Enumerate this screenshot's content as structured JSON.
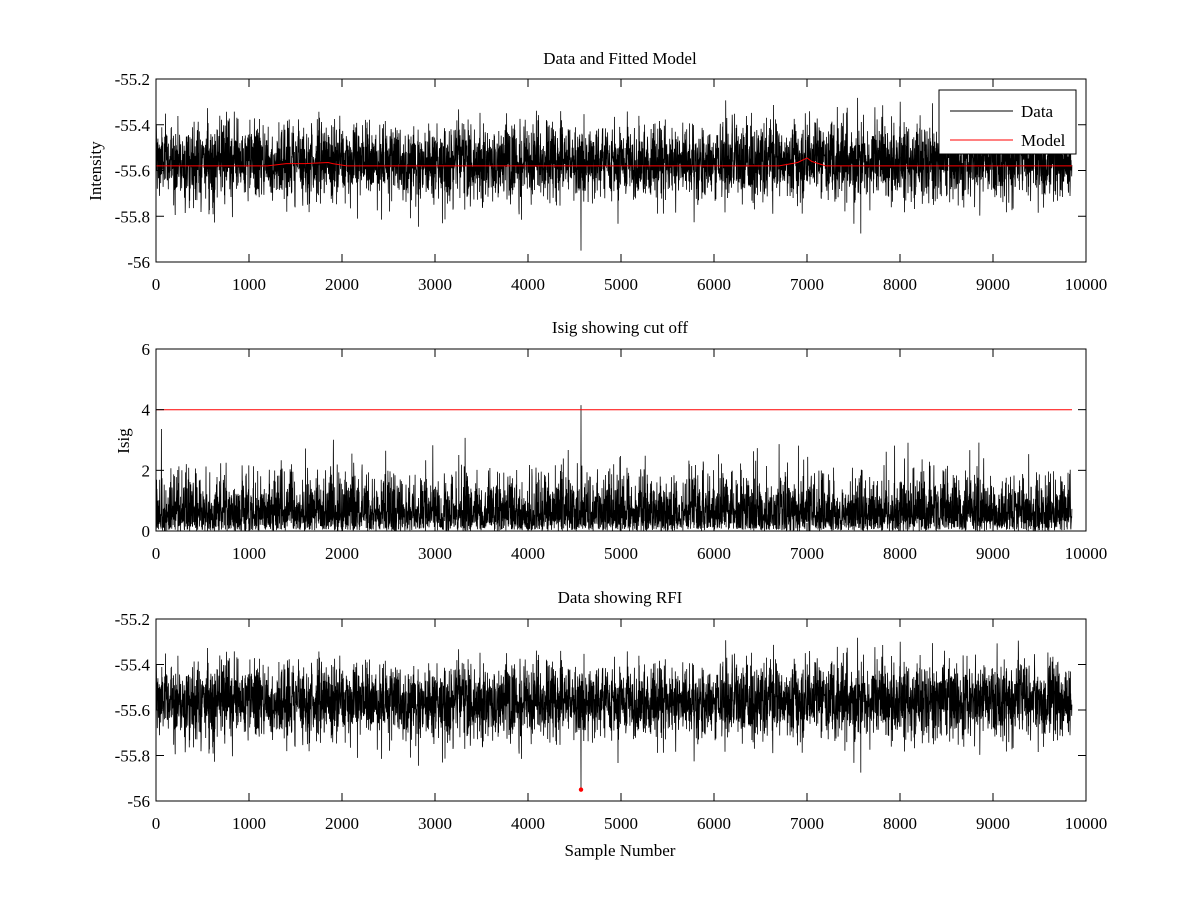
{
  "figure": {
    "background": "#ffffff",
    "data_color": "#000000",
    "model_color": "#ff0000",
    "marker_color": "#ff0000"
  },
  "chart_data": [
    {
      "type": "line",
      "title": "Data and Fitted Model",
      "xlabel": "",
      "ylabel": "Intensity",
      "xlim": [
        0,
        10000
      ],
      "ylim": [
        -56,
        -55.2
      ],
      "xticks": [
        0,
        1000,
        2000,
        3000,
        4000,
        5000,
        6000,
        7000,
        8000,
        9000,
        10000
      ],
      "yticks": [
        -56,
        -55.8,
        -55.6,
        -55.4,
        -55.2
      ],
      "ytick_labels": [
        "-56",
        "-55.8",
        "-55.6",
        "-55.4",
        "-55.2"
      ],
      "legend": {
        "position": "top-right",
        "entries": [
          "Data",
          "Model"
        ]
      },
      "series": [
        {
          "name": "Data",
          "color": "#000000",
          "kind": "noise",
          "n_samples": 9850,
          "mean": -55.56,
          "noise_std": 0.085,
          "range_observed": [
            -55.95,
            -55.25
          ],
          "notable_points": [
            {
              "x": 4570,
              "y": -55.95
            }
          ]
        },
        {
          "name": "Model",
          "color": "#ff0000",
          "kind": "line",
          "x": [
            0,
            1200,
            1400,
            1600,
            1850,
            1900,
            2050,
            6700,
            6900,
            7000,
            7050,
            7200,
            9850
          ],
          "y": [
            -55.58,
            -55.58,
            -55.57,
            -55.57,
            -55.565,
            -55.57,
            -55.58,
            -55.58,
            -55.565,
            -55.545,
            -55.56,
            -55.58,
            -55.58
          ]
        }
      ]
    },
    {
      "type": "line",
      "title": "Isig showing cut off",
      "xlabel": "",
      "ylabel": "Isig",
      "xlim": [
        0,
        10000
      ],
      "ylim": [
        0,
        6
      ],
      "xticks": [
        0,
        1000,
        2000,
        3000,
        4000,
        5000,
        6000,
        7000,
        8000,
        9000,
        10000
      ],
      "yticks": [
        0,
        2,
        4,
        6
      ],
      "ytick_labels": [
        "0",
        "2",
        "4",
        "6"
      ],
      "series": [
        {
          "name": "Isig",
          "color": "#000000",
          "kind": "abs-noise",
          "n_samples": 9850,
          "noise_std": 0.85,
          "range_observed": [
            0,
            4.15
          ],
          "notable_points": [
            {
              "x": 4570,
              "y": 4.15
            }
          ]
        },
        {
          "name": "Cutoff",
          "color": "#ff0000",
          "kind": "line",
          "x": [
            0,
            9850
          ],
          "y": [
            4,
            4
          ]
        }
      ]
    },
    {
      "type": "line",
      "title": "Data showing RFI",
      "xlabel": "Sample Number",
      "ylabel": "",
      "xlim": [
        0,
        10000
      ],
      "ylim": [
        -56,
        -55.2
      ],
      "xticks": [
        0,
        1000,
        2000,
        3000,
        4000,
        5000,
        6000,
        7000,
        8000,
        9000,
        10000
      ],
      "yticks": [
        -56,
        -55.8,
        -55.6,
        -55.4,
        -55.2
      ],
      "ytick_labels": [
        "-56",
        "-55.8",
        "-55.6",
        "-55.4",
        "-55.2"
      ],
      "series": [
        {
          "name": "Data",
          "color": "#000000",
          "kind": "noise",
          "n_samples": 9850,
          "mean": -55.56,
          "noise_std": 0.085,
          "range_observed": [
            -55.95,
            -55.25
          ],
          "notable_points": [
            {
              "x": 4570,
              "y": -55.95
            }
          ]
        },
        {
          "name": "RFI",
          "color": "#ff0000",
          "kind": "marker",
          "x": [
            4570
          ],
          "y": [
            -55.95
          ]
        }
      ]
    }
  ]
}
